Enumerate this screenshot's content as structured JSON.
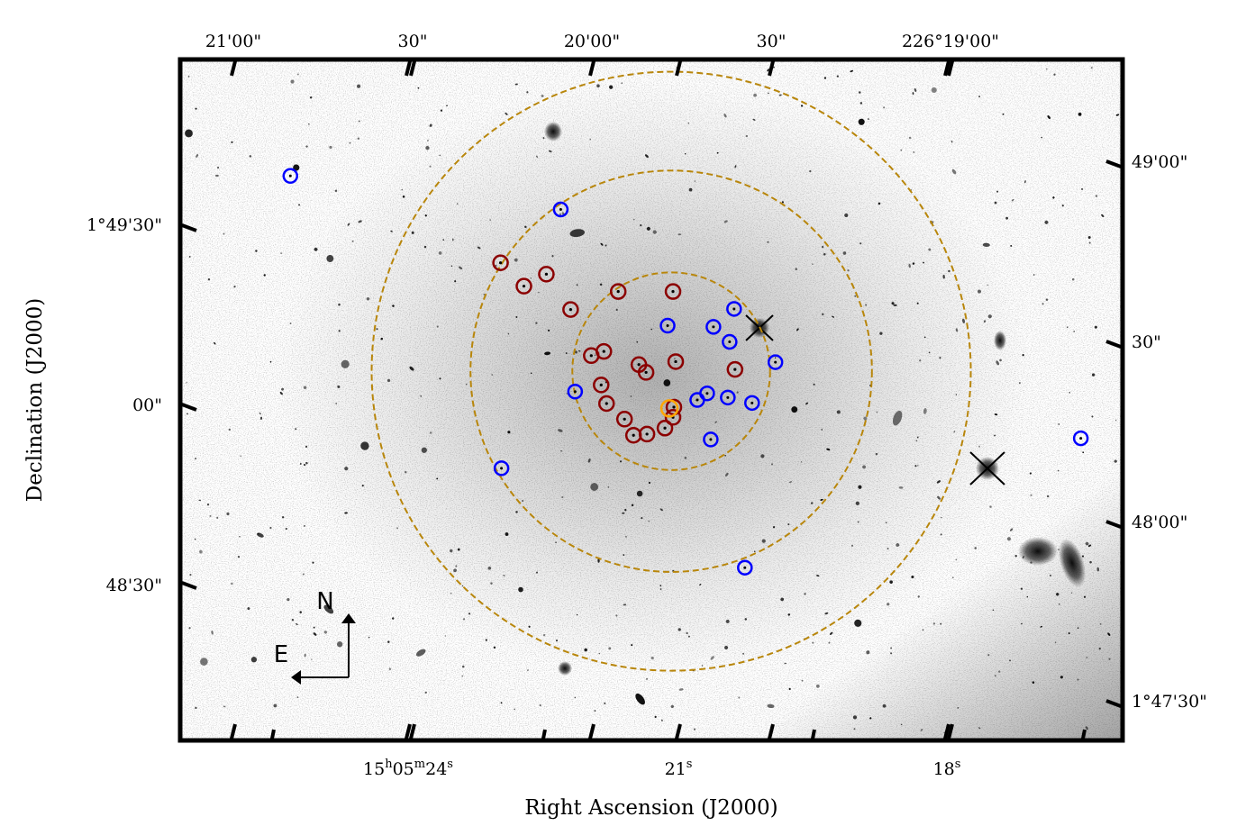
{
  "axes": {
    "x_label": "Right Ascension (J2000)",
    "y_label": "Declination (J2000)",
    "bottom_ticks": [
      {
        "base": "15",
        "h": "h",
        "m_val": "05",
        "m": "m",
        "s_val": "24",
        "s": "s"
      },
      {
        "base": "",
        "h": "",
        "m_val": "",
        "m": "",
        "s_val": "21",
        "s": "s"
      },
      {
        "base": "",
        "h": "",
        "m_val": "",
        "m": "",
        "s_val": "18",
        "s": "s"
      }
    ],
    "top_ticks": [
      "21'00\"",
      "30\"",
      "20'00\"",
      "30\"",
      "226°19'00\""
    ],
    "left_ticks": [
      "1°49'30\"",
      "00\"",
      "48'30\""
    ],
    "right_ticks": [
      "49'00\"",
      "30\"",
      "48'00\"",
      "1°47'30\""
    ]
  },
  "compass": {
    "north": "N",
    "east": "E"
  },
  "colors": {
    "frame": "#000000",
    "dashed_circle": "#b8860b",
    "red_marker": "#8b0000",
    "blue_marker": "#0000ff",
    "center_marker": "#ffa500",
    "sky": "#ffffff"
  },
  "markers": {
    "red": [
      {
        "ra_sec": 22.98,
        "dec_sec": 84.1
      },
      {
        "ra_sec": 22.72,
        "dec_sec": 80.2
      },
      {
        "ra_sec": 22.47,
        "dec_sec": 82.2
      },
      {
        "ra_sec": 21.67,
        "dec_sec": 79.3
      },
      {
        "ra_sec": 21.06,
        "dec_sec": 79.3
      },
      {
        "ra_sec": 22.2,
        "dec_sec": 76.3
      },
      {
        "ra_sec": 21.97,
        "dec_sec": 68.6
      },
      {
        "ra_sec": 21.83,
        "dec_sec": 69.3
      },
      {
        "ra_sec": 21.44,
        "dec_sec": 67.1
      },
      {
        "ra_sec": 21.36,
        "dec_sec": 65.8
      },
      {
        "ra_sec": 21.03,
        "dec_sec": 67.6
      },
      {
        "ra_sec": 20.37,
        "dec_sec": 66.3
      },
      {
        "ra_sec": 21.86,
        "dec_sec": 63.7
      },
      {
        "ra_sec": 21.8,
        "dec_sec": 60.6
      },
      {
        "ra_sec": 21.6,
        "dec_sec": 58.0
      },
      {
        "ra_sec": 21.35,
        "dec_sec": 55.5
      },
      {
        "ra_sec": 21.15,
        "dec_sec": 56.5
      },
      {
        "ra_sec": 21.06,
        "dec_sec": 58.3
      },
      {
        "ra_sec": 21.05,
        "dec_sec": 60.0
      },
      {
        "ra_sec": 21.5,
        "dec_sec": 55.3
      }
    ],
    "blue": [
      {
        "ra_sec": 25.32,
        "dec_sec": 98.6
      },
      {
        "ra_sec": 22.31,
        "dec_sec": 93.0
      },
      {
        "ra_sec": 20.38,
        "dec_sec": 76.4
      },
      {
        "ra_sec": 21.12,
        "dec_sec": 73.6
      },
      {
        "ra_sec": 20.61,
        "dec_sec": 73.4
      },
      {
        "ra_sec": 20.43,
        "dec_sec": 70.9
      },
      {
        "ra_sec": 19.92,
        "dec_sec": 67.5
      },
      {
        "ra_sec": 22.15,
        "dec_sec": 62.6
      },
      {
        "ra_sec": 20.68,
        "dec_sec": 62.3
      },
      {
        "ra_sec": 20.79,
        "dec_sec": 61.2
      },
      {
        "ra_sec": 20.45,
        "dec_sec": 61.6
      },
      {
        "ra_sec": 20.18,
        "dec_sec": 60.7
      },
      {
        "ra_sec": 20.64,
        "dec_sec": 54.6
      },
      {
        "ra_sec": 22.97,
        "dec_sec": 49.8
      },
      {
        "ra_sec": 16.52,
        "dec_sec": 54.8
      },
      {
        "ra_sec": 20.26,
        "dec_sec": 33.2
      }
    ],
    "center": {
      "ra_sec": 21.1,
      "dec_sec": 59.8
    }
  },
  "circles": {
    "center": {
      "ra_sec": 21.08,
      "dec_sec": 66.0
    },
    "radii_arcsec": [
      16.5,
      33.5,
      50.0
    ]
  }
}
